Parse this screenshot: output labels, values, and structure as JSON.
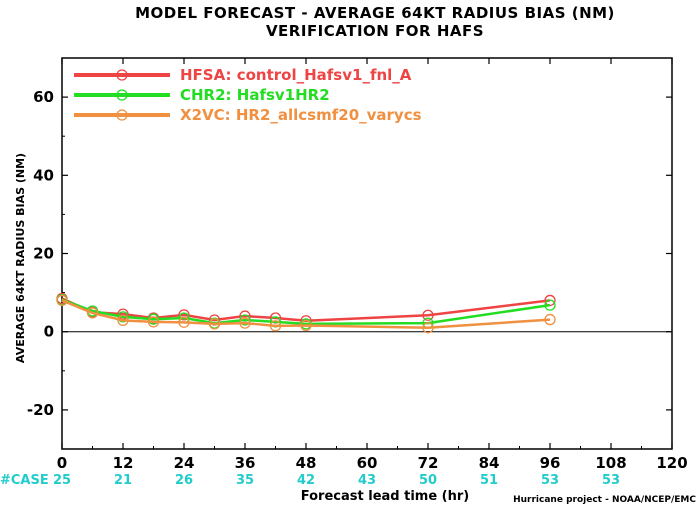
{
  "chart_data": {
    "type": "line",
    "title": "MODEL FORECAST - AVERAGE 64KT RADIUS BIAS (NM)",
    "subtitle": "VERIFICATION FOR HAFS",
    "xlabel": "Forecast lead time (hr)",
    "ylabel": "AVERAGE 64KT RADIUS BIAS (NM)",
    "xlim": [
      0,
      120
    ],
    "ylim": [
      -30,
      70
    ],
    "xticks": [
      0,
      12,
      24,
      36,
      48,
      60,
      72,
      84,
      96,
      108,
      120
    ],
    "yticks": [
      -20,
      0,
      20,
      40,
      60
    ],
    "x": [
      0,
      6,
      12,
      18,
      24,
      30,
      36,
      42,
      48,
      72,
      96
    ],
    "series": [
      {
        "name": "HFSA: control_Hafsv1_fnl_A",
        "color": "#ee4444",
        "values": [
          8.5,
          5.0,
          4.5,
          3.5,
          4.3,
          3.0,
          4.0,
          3.5,
          2.8,
          4.2,
          8.0
        ]
      },
      {
        "name": "CHR2: Hafsv1HR2",
        "color": "#22dd22",
        "values": [
          8.2,
          5.3,
          3.8,
          3.2,
          3.5,
          2.2,
          3.0,
          2.5,
          2.0,
          2.2,
          6.8
        ]
      },
      {
        "name": "X2VC: HR2_allcsmf20_varycs",
        "color": "#f09040",
        "values": [
          8.0,
          4.8,
          2.9,
          2.5,
          2.4,
          2.0,
          2.2,
          1.5,
          1.6,
          1.0,
          3.1
        ]
      }
    ],
    "legend_position": "top-left",
    "zero_line": true
  },
  "case_counts": {
    "label": "#CASE",
    "color": "#22cccc",
    "counts": [
      {
        "x": 0,
        "value": "25"
      },
      {
        "x": 12,
        "value": "21"
      },
      {
        "x": 24,
        "value": "26"
      },
      {
        "x": 36,
        "value": "35"
      },
      {
        "x": 48,
        "value": "42"
      },
      {
        "x": 60,
        "value": "43"
      },
      {
        "x": 72,
        "value": "50"
      },
      {
        "x": 84,
        "value": "51"
      },
      {
        "x": 96,
        "value": "53"
      },
      {
        "x": 108,
        "value": "53"
      }
    ]
  },
  "credit": "Hurricane project - NOAA/NCEP/EMC"
}
